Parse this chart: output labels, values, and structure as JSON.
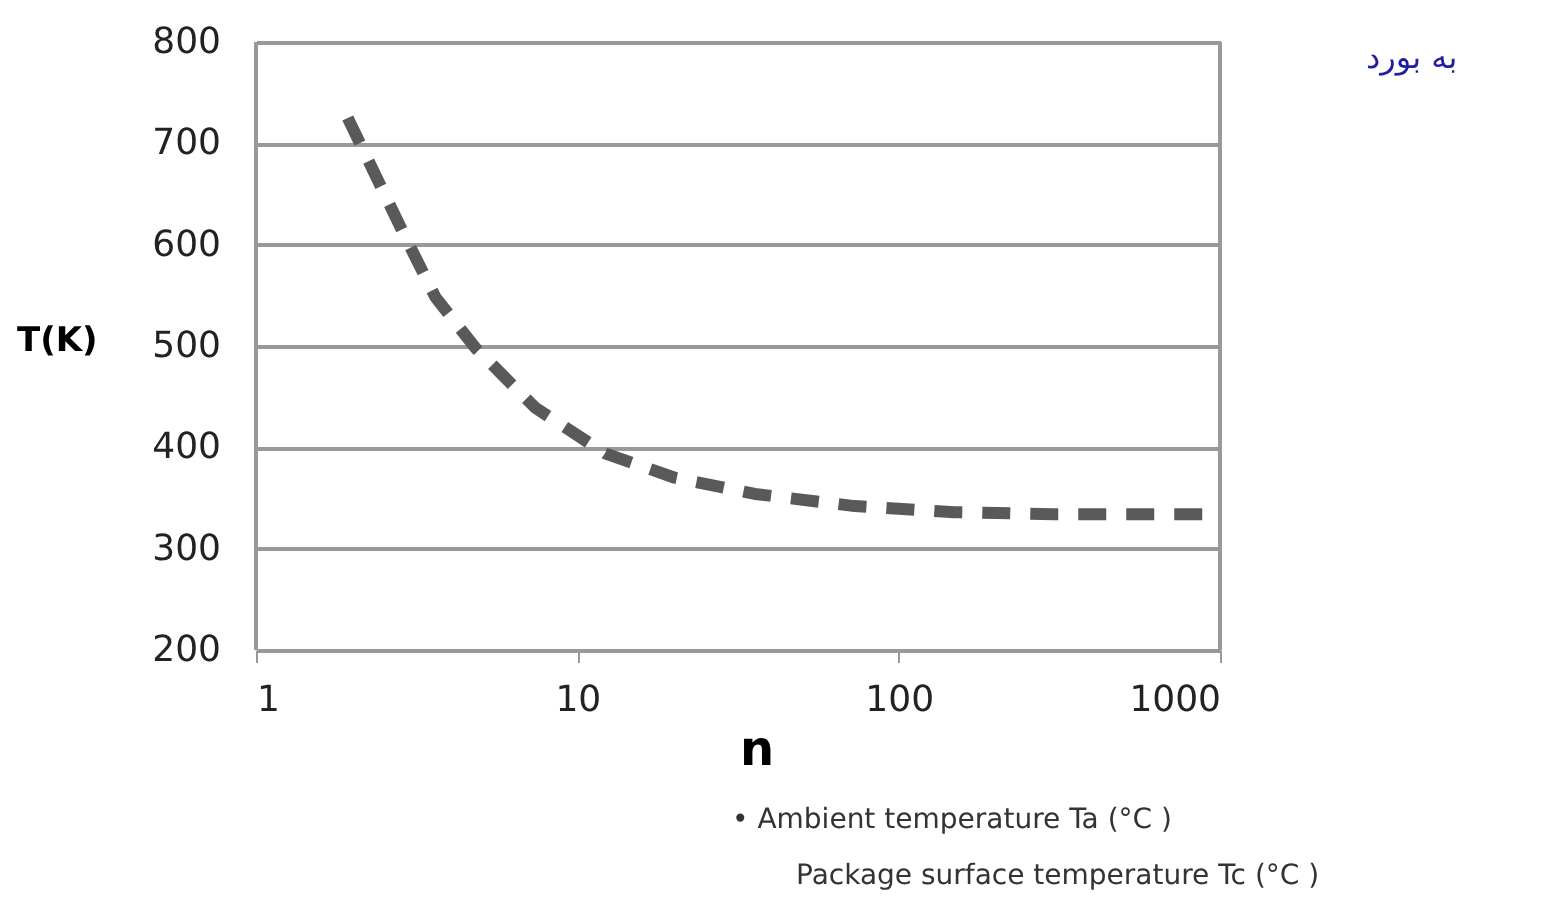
{
  "chart_data": {
    "type": "line",
    "xlabel": "n",
    "ylabel": "T(K)",
    "log": "x",
    "x": [
      1.93,
      2.92,
      3.62,
      4.82,
      7.4,
      12.2,
      20.1,
      35.7,
      73,
      149,
      302,
      720,
      1000
    ],
    "series": [
      {
        "color": "#595959",
        "values": [
          725,
          607,
          548,
          498,
          439,
          394,
          370,
          354,
          342,
          336,
          334,
          334,
          334
        ]
      }
    ],
    "xlim": [
      1,
      1000
    ],
    "xticks": [
      1,
      10,
      100,
      1000
    ],
    "ylim": [
      200,
      800
    ],
    "yticks": [
      200,
      300,
      400,
      500,
      600,
      700,
      800
    ],
    "grid": "y",
    "line_style": "dashed",
    "annotations": [
      "به بورد",
      "• Ambient temperature Ta (°C )",
      "Package surface temperature Tc (°C )"
    ]
  }
}
